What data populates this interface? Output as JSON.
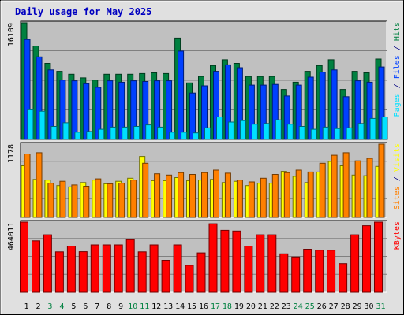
{
  "chart_data": {
    "type": "bar",
    "title": "Daily usage for May 2025",
    "x": [
      "1",
      "2",
      "3",
      "4",
      "5",
      "6",
      "7",
      "8",
      "9",
      "10",
      "11",
      "12",
      "13",
      "14",
      "15",
      "16",
      "17",
      "18",
      "19",
      "20",
      "21",
      "22",
      "23",
      "24",
      "25",
      "26",
      "27",
      "28",
      "29",
      "30",
      "31"
    ],
    "weekend_days": [
      "3",
      "4",
      "10",
      "11",
      "17",
      "18",
      "24",
      "25",
      "31"
    ],
    "colors": {
      "hits": "#008040",
      "files": "#0040ff",
      "pages": "#00e0ff",
      "visits": "#ffff00",
      "sites": "#ff8000",
      "kbytes": "#ff0000",
      "title": "#0000c0",
      "weekend_label": "#008040",
      "weekday_label": "#000000",
      "panel_bg": "#c0c0c0"
    },
    "panels": [
      {
        "id": "hits-files-pages",
        "ymax": 16109,
        "ymax_label": "16109",
        "right_label": [
          {
            "text": "Pages",
            "color": "#00e0ff"
          },
          {
            "text": " / ",
            "color": "#000080"
          },
          {
            "text": "Files",
            "color": "#0040ff"
          },
          {
            "text": " / ",
            "color": "#000080"
          },
          {
            "text": "Hits",
            "color": "#008040"
          }
        ],
        "series": [
          {
            "key": "hits",
            "values": [
              16109,
              12900,
              10500,
              9400,
              9000,
              8500,
              8200,
              9000,
              9000,
              9000,
              9100,
              9200,
              9100,
              14000,
              7800,
              8700,
              10200,
              11000,
              10500,
              8700,
              8700,
              8700,
              6900,
              7900,
              9400,
              10200,
              11000,
              6900,
              9400,
              9200,
              11100
            ]
          },
          {
            "key": "files",
            "values": [
              13800,
              11400,
              9600,
              8200,
              8100,
              7700,
              7200,
              8100,
              7900,
              8100,
              8000,
              8100,
              8100,
              12200,
              6400,
              7400,
              9400,
              10300,
              9900,
              7500,
              7500,
              7600,
              6000,
              7500,
              8600,
              9300,
              9600,
              5900,
              8100,
              7900,
              10000
            ]
          },
          {
            "key": "pages",
            "values": [
              4100,
              3900,
              1800,
              2300,
              1000,
              1100,
              1400,
              1700,
              1700,
              1800,
              2000,
              1700,
              1000,
              1000,
              900,
              1600,
              3100,
              2400,
              2600,
              2100,
              2200,
              2700,
              2100,
              1800,
              1400,
              1700,
              1500,
              1600,
              2200,
              2900,
              3100
            ]
          }
        ]
      },
      {
        "id": "visits-sites",
        "ymax": 1178,
        "ymax_label": "1178",
        "right_label": [
          {
            "text": "Sites",
            "color": "#ff8000"
          },
          {
            "text": " / ",
            "color": "#000080"
          },
          {
            "text": "Visits",
            "color": "#ffff00"
          }
        ],
        "series": [
          {
            "key": "visits",
            "values": [
              830,
              610,
              600,
              510,
              490,
              560,
              600,
              540,
              580,
              630,
              980,
              590,
              590,
              640,
              590,
              600,
              610,
              560,
              580,
              510,
              550,
              550,
              740,
              660,
              560,
              730,
              900,
              830,
              680,
              670,
              820
            ]
          },
          {
            "key": "sites",
            "values": [
              1020,
              1040,
              550,
              580,
              520,
              500,
              620,
              540,
              550,
              600,
              870,
              700,
              680,
              720,
              690,
              720,
              760,
              710,
              600,
              570,
              630,
              690,
              720,
              760,
              730,
              870,
              1000,
              1040,
              910,
              950,
              1178
            ]
          }
        ]
      },
      {
        "id": "kbytes",
        "ymax": 464011,
        "ymax_label": "464011",
        "right_label": [
          {
            "text": "KBytes",
            "color": "#ff0000"
          }
        ],
        "series": [
          {
            "key": "kbytes",
            "values": [
              464011,
              340000,
              380000,
              267000,
              305000,
              268000,
              313000,
              313000,
              313000,
              348000,
              267000,
              313000,
              211000,
              313000,
              178000,
              260000,
              453000,
              410000,
              405000,
              305000,
              380000,
              380000,
              254000,
              233000,
              284000,
              278000,
              278000,
              189000,
              380000,
              440000,
              464011
            ]
          }
        ]
      }
    ]
  }
}
